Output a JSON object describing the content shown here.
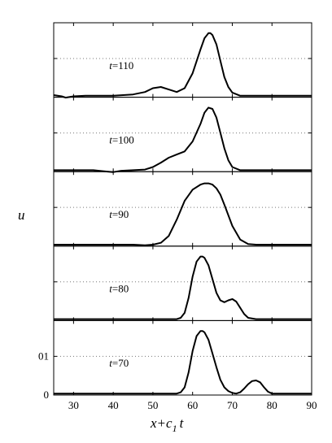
{
  "chart_data": {
    "type": "line",
    "title": "",
    "xlabel": "x+c",
    "xlabel_sub": "1",
    "xlabel_tail": "t",
    "ylabel": "u",
    "xlim": [
      25,
      90
    ],
    "xticks": [
      "30",
      "40",
      "50",
      "60",
      "70",
      "80",
      "90"
    ],
    "ytick_labels": [
      "0",
      "01"
    ],
    "grid": "dotted horizontal lines in each panel",
    "panels": [
      {
        "label_var": "t",
        "label_val": "=110",
        "series": [
          {
            "x": [
              25,
              27,
              28,
              30,
              33,
              36,
              40,
              45,
              48,
              50,
              52,
              54,
              56,
              58,
              60,
              62,
              63,
              64,
              64.5,
              65,
              66,
              67,
              68,
              69,
              70,
              72,
              75,
              80,
              90
            ],
            "y": [
              0.01,
              -0.01,
              -0.03,
              -0.01,
              0.0,
              0.0,
              0.0,
              0.02,
              0.06,
              0.12,
              0.14,
              0.1,
              0.06,
              0.12,
              0.36,
              0.74,
              0.92,
              1.0,
              1.0,
              0.97,
              0.82,
              0.56,
              0.3,
              0.14,
              0.05,
              0.0,
              0.0,
              0.0,
              0.0
            ]
          }
        ]
      },
      {
        "label_var": "t",
        "label_val": "=100",
        "series": [
          {
            "x": [
              25,
              30,
              35,
              38,
              40,
              42,
              45,
              48,
              50,
              52,
              54,
              56,
              58,
              60,
              62,
              63,
              64,
              65,
              66,
              67,
              68,
              69,
              70,
              72,
              75,
              80,
              90
            ],
            "y": [
              0.0,
              0.0,
              0.0,
              -0.02,
              -0.03,
              -0.01,
              0.0,
              0.01,
              0.05,
              0.12,
              0.2,
              0.25,
              0.3,
              0.46,
              0.74,
              0.92,
              1.0,
              0.98,
              0.84,
              0.6,
              0.35,
              0.16,
              0.05,
              0.0,
              0.0,
              0.0,
              0.0
            ]
          }
        ]
      },
      {
        "label_var": "t",
        "label_val": "=90",
        "series": [
          {
            "x": [
              25,
              30,
              40,
              45,
              48,
              50,
              52,
              54,
              56,
              58,
              60,
              62,
              63,
              64,
              65,
              66,
              67,
              68,
              70,
              72,
              74,
              76,
              80,
              90
            ],
            "y": [
              0.0,
              0.0,
              0.0,
              0.0,
              -0.01,
              0.0,
              0.03,
              0.14,
              0.4,
              0.7,
              0.88,
              0.96,
              0.98,
              0.98,
              0.96,
              0.9,
              0.8,
              0.64,
              0.3,
              0.08,
              0.01,
              0.0,
              0.0,
              0.0
            ]
          }
        ]
      },
      {
        "label_var": "t",
        "label_val": "=80",
        "series": [
          {
            "x": [
              25,
              30,
              40,
              50,
              54,
              56,
              57,
              58,
              59,
              60,
              61,
              62,
              62.5,
              63,
              64,
              65,
              66,
              67,
              68,
              69,
              70,
              71,
              72,
              73,
              74,
              76,
              80,
              90
            ],
            "y": [
              0.0,
              0.0,
              0.0,
              0.0,
              0.0,
              0.0,
              0.02,
              0.1,
              0.34,
              0.68,
              0.92,
              1.0,
              1.0,
              0.98,
              0.86,
              0.64,
              0.42,
              0.3,
              0.27,
              0.3,
              0.32,
              0.28,
              0.18,
              0.08,
              0.02,
              0.0,
              0.0,
              0.0
            ]
          }
        ]
      },
      {
        "label_var": "t",
        "label_val": "=70",
        "series": [
          {
            "x": [
              25,
              30,
              40,
              50,
              54,
              56,
              57,
              58,
              59,
              60,
              61,
              62,
              62.5,
              63,
              64,
              65,
              66,
              67,
              68,
              69,
              70,
              71,
              72,
              73,
              74,
              75,
              76,
              77,
              78,
              79,
              80,
              82,
              90
            ],
            "y": [
              0.0,
              0.0,
              0.0,
              0.0,
              0.0,
              0.0,
              0.02,
              0.1,
              0.34,
              0.68,
              0.92,
              1.0,
              1.0,
              0.98,
              0.86,
              0.64,
              0.42,
              0.22,
              0.1,
              0.04,
              0.01,
              0.0,
              0.02,
              0.08,
              0.15,
              0.2,
              0.21,
              0.18,
              0.1,
              0.03,
              0.0,
              0.0,
              0.0
            ]
          }
        ]
      }
    ]
  }
}
